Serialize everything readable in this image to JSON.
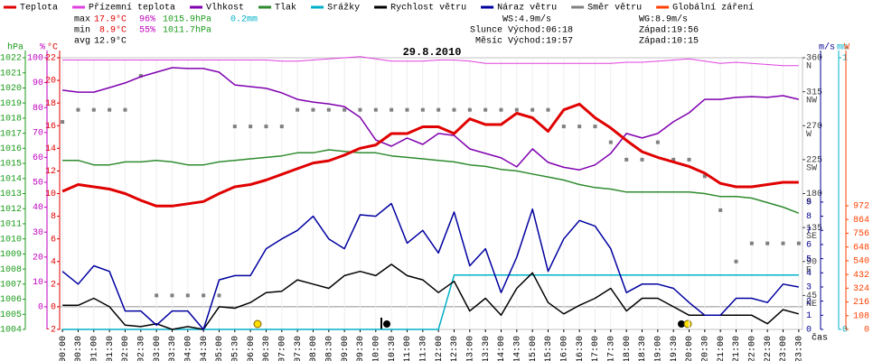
{
  "chart_data": {
    "type": "line",
    "title": "29.8.2010",
    "stats": {
      "max": {
        "label": "max",
        "temp": "17.9°C",
        "hum": "96%",
        "press": "1015.9hPa",
        "rain": "0.2mm"
      },
      "min": {
        "label": "min",
        "temp": "8.9°C",
        "hum": "55%",
        "press": "1011.7hPa"
      },
      "avg": {
        "label": "avg",
        "temp": "12.9°C"
      },
      "wind": {
        "ws": "WS:4.9m/s",
        "wg": "WG:8.9m/s"
      },
      "sun": {
        "rise": "Slunce Východ:06:18",
        "set": "Západ:19:56"
      },
      "moon": {
        "rise": "Měsíc Východ:19:57",
        "set": "Západ:10:15"
      }
    },
    "x_label": "čas",
    "xlim": [
      -0.09,
      23.62
    ],
    "x": [
      0,
      0.5,
      1,
      1.5,
      2,
      2.5,
      3,
      3.5,
      4,
      4.5,
      5,
      5.5,
      6,
      6.5,
      7,
      7.5,
      8,
      8.5,
      9,
      9.5,
      10,
      10.5,
      11,
      11.5,
      12,
      12.5,
      13,
      13.5,
      14,
      14.5,
      15,
      15.5,
      16,
      16.5,
      17,
      17.5,
      18,
      18.5,
      19,
      19.5,
      20,
      20.5,
      21,
      21.5,
      22,
      22.5,
      23,
      23.5
    ],
    "xticks": [
      {
        "value": 0,
        "label": "00:00"
      },
      {
        "value": 0.5,
        "label": "00:30"
      },
      {
        "value": 1,
        "label": "01:00"
      },
      {
        "value": 1.5,
        "label": "01:30"
      },
      {
        "value": 2,
        "label": "02:00"
      },
      {
        "value": 2.5,
        "label": "02:30"
      },
      {
        "value": 3,
        "label": "03:00"
      },
      {
        "value": 3.5,
        "label": "03:30"
      },
      {
        "value": 4,
        "label": "04:00"
      },
      {
        "value": 4.5,
        "label": "04:30"
      },
      {
        "value": 5,
        "label": "05:00"
      },
      {
        "value": 5.5,
        "label": "05:30"
      },
      {
        "value": 6,
        "label": "06:00"
      },
      {
        "value": 6.5,
        "label": "06:30"
      },
      {
        "value": 7,
        "label": "07:00"
      },
      {
        "value": 7.5,
        "label": "07:30"
      },
      {
        "value": 8,
        "label": "08:00"
      },
      {
        "value": 8.5,
        "label": "08:30"
      },
      {
        "value": 9,
        "label": "09:00"
      },
      {
        "value": 9.5,
        "label": "09:30"
      },
      {
        "value": 10,
        "label": "10:00"
      },
      {
        "value": 10.5,
        "label": "10:30"
      },
      {
        "value": 11,
        "label": "11:00"
      },
      {
        "value": 11.5,
        "label": "11:30"
      },
      {
        "value": 12,
        "label": "12:00"
      },
      {
        "value": 12.5,
        "label": "12:30"
      },
      {
        "value": 13,
        "label": "13:00"
      },
      {
        "value": 13.5,
        "label": "13:30"
      },
      {
        "value": 14,
        "label": "14:00"
      },
      {
        "value": 14.5,
        "label": "14:30"
      },
      {
        "value": 15,
        "label": "15:00"
      },
      {
        "value": 15.5,
        "label": "15:30"
      },
      {
        "value": 16,
        "label": "16:00"
      },
      {
        "value": 16.5,
        "label": "16:30"
      },
      {
        "value": 17,
        "label": "17:00"
      },
      {
        "value": 17.5,
        "label": "17:30"
      },
      {
        "value": 18,
        "label": "18:00"
      },
      {
        "value": 18.5,
        "label": "18:30"
      },
      {
        "value": 19,
        "label": "19:00"
      },
      {
        "value": 19.5,
        "label": "19:30"
      },
      {
        "value": 20,
        "label": "20:00"
      },
      {
        "value": 20.5,
        "label": "20:30"
      },
      {
        "value": 21,
        "label": "21:00"
      },
      {
        "value": 21.5,
        "label": "21:30"
      },
      {
        "value": 22,
        "label": "22:00"
      },
      {
        "value": 22.5,
        "label": "22:30"
      },
      {
        "value": 23,
        "label": "23:00"
      },
      {
        "value": 23.5,
        "label": "23:30"
      }
    ],
    "axes": {
      "hPa": {
        "unit": "hPa",
        "color": "#1a9a1a",
        "lim": [
          1004,
          1022
        ],
        "ticks": [
          1004,
          1005,
          1006,
          1007,
          1008,
          1009,
          1010,
          1011,
          1012,
          1013,
          1014,
          1015,
          1016,
          1017,
          1018,
          1019,
          1020,
          1021,
          1022
        ]
      },
      "pct": {
        "unit": "%",
        "color": "#c000c0",
        "lim": [
          -9.06,
          100
        ],
        "ticks": [
          0,
          10,
          20,
          30,
          40,
          50,
          60,
          70,
          80,
          90,
          100
        ]
      },
      "temp": {
        "unit": "°C",
        "color": "#e00000",
        "lim": [
          -2,
          22
        ],
        "ticks": [
          -2,
          0,
          2,
          4,
          6,
          8,
          10,
          12,
          14,
          16,
          18,
          20,
          22
        ]
      },
      "dir": {
        "color": "#404040",
        "lim": [
          0,
          360
        ],
        "ticks": [
          45,
          90,
          135,
          180,
          225,
          270,
          315,
          360
        ],
        "compass": [
          "NE",
          "E",
          "SE",
          "S",
          "SW",
          "W",
          "NW",
          "N"
        ]
      },
      "wind": {
        "unit": "m/s",
        "color": "#000090",
        "lim": [
          0,
          19.2
        ],
        "ticks": [
          0,
          1,
          2,
          3,
          4,
          5,
          6,
          7,
          8,
          9
        ]
      },
      "rain": {
        "unit": "mm",
        "color": "#00b0c8",
        "lim": [
          0,
          1
        ],
        "ticks": [
          0,
          1
        ]
      },
      "rad": {
        "unit": "W",
        "color": "#ff4000",
        "lim": [
          0,
          2136
        ],
        "ticks": [
          0,
          108,
          216,
          324,
          432,
          540,
          648,
          756,
          864,
          972
        ]
      }
    },
    "series": [
      {
        "name": "Teplota",
        "color": "#e00000",
        "axis": "temp",
        "width": 3,
        "values": [
          10.2,
          10.8,
          10.6,
          10.4,
          10,
          9.4,
          8.9,
          8.9,
          9.1,
          9.3,
          10,
          10.6,
          10.8,
          11.2,
          11.7,
          12.2,
          12.7,
          12.9,
          13.4,
          14,
          14.3,
          15.3,
          15.3,
          15.9,
          15.9,
          15.3,
          16.6,
          16.1,
          16.1,
          17.1,
          16.7,
          15.5,
          17.4,
          17.9,
          16.7,
          15.8,
          14.7,
          13.7,
          13.2,
          12.8,
          12.4,
          11.8,
          10.9,
          10.6,
          10.6,
          10.8,
          11,
          11
        ]
      },
      {
        "name": "Přízemní teplota",
        "color": "#e040e0",
        "axis": "temp",
        "width": 1,
        "values": [
          21.8,
          21.8,
          21.8,
          21.8,
          21.8,
          21.8,
          21.8,
          21.8,
          21.8,
          21.8,
          21.8,
          21.8,
          21.8,
          21.8,
          21.7,
          21.7,
          21.8,
          21.9,
          22,
          22.1,
          21.9,
          21.7,
          21.7,
          21.7,
          21.8,
          21.8,
          21.7,
          21.5,
          21.5,
          21.5,
          21.5,
          21.5,
          21.5,
          21.5,
          21.5,
          21.5,
          21.6,
          21.6,
          21.7,
          21.8,
          21.9,
          21.7,
          21.5,
          21.6,
          21.5,
          21.4,
          21.3,
          21.3
        ]
      },
      {
        "name": "Vlhkost",
        "color": "#8000b0",
        "axis": "pct",
        "width": 1.5,
        "values": [
          87,
          86.2,
          86.2,
          88,
          89.9,
          92.4,
          94.2,
          96,
          95.7,
          95.7,
          94.2,
          89.1,
          88.4,
          87.7,
          85.9,
          83.3,
          82.2,
          81.5,
          80.4,
          76.1,
          67,
          64.5,
          67.8,
          65.2,
          69.6,
          68.8,
          63.4,
          61.6,
          59.8,
          56.2,
          63.4,
          58,
          56,
          55,
          57,
          61.6,
          69.6,
          67.8,
          69.6,
          74.3,
          77.9,
          83.3,
          83.3,
          84.1,
          84.4,
          84.1,
          84.8,
          83.3
        ]
      },
      {
        "name": "Tlak",
        "color": "#2e8b2e",
        "axis": "hPa",
        "width": 1.5,
        "values": [
          1015.2,
          1015.2,
          1014.9,
          1014.9,
          1015.1,
          1015.1,
          1015.2,
          1015.1,
          1014.9,
          1014.9,
          1015.1,
          1015.2,
          1015.3,
          1015.4,
          1015.5,
          1015.7,
          1015.7,
          1015.9,
          1015.8,
          1015.7,
          1015.7,
          1015.5,
          1015.4,
          1015.3,
          1015.2,
          1015.1,
          1014.9,
          1014.8,
          1014.6,
          1014.5,
          1014.3,
          1014.1,
          1013.9,
          1013.6,
          1013.4,
          1013.3,
          1013.1,
          1013.1,
          1013.1,
          1013.1,
          1013.1,
          1013,
          1012.8,
          1012.8,
          1012.7,
          1012.4,
          1012.1,
          1011.7
        ]
      },
      {
        "name": "Srážky",
        "color": "#00b0c8",
        "axis": "rain",
        "width": 1.5,
        "values": [
          0,
          0,
          0,
          0,
          0,
          0,
          0,
          0,
          0,
          0,
          0,
          0,
          0,
          0,
          0,
          0,
          0,
          0,
          0,
          0,
          0,
          0,
          0,
          0,
          0,
          0.2,
          0.2,
          0.2,
          0.2,
          0.2,
          0.2,
          0.2,
          0.2,
          0.2,
          0.2,
          0.2,
          0.2,
          0.2,
          0.2,
          0.2,
          0.2,
          0.2,
          0.2,
          0.2,
          0.2,
          0.2,
          0.2,
          0.2
        ]
      },
      {
        "name": "Rychlost větru",
        "color": "#000000",
        "axis": "wind",
        "width": 1.5,
        "values": [
          1.7,
          1.7,
          2.2,
          1.6,
          0.3,
          0.2,
          0.4,
          0,
          0.2,
          0,
          1.6,
          1.5,
          1.9,
          2.6,
          2.7,
          3.5,
          3.2,
          2.9,
          3.8,
          4.1,
          3.8,
          4.6,
          3.8,
          3.5,
          2.6,
          3.4,
          1.3,
          2.2,
          1,
          2.9,
          4,
          1.9,
          1.1,
          1.7,
          2.2,
          2.9,
          1.3,
          2.2,
          2.2,
          1.6,
          1,
          1,
          1,
          1,
          1,
          0.4,
          1.4,
          1.1
        ]
      },
      {
        "name": "Náraz větru",
        "color": "#0000a0",
        "axis": "wind",
        "width": 1.5,
        "values": [
          4.1,
          3.2,
          4.5,
          4.1,
          1.3,
          1.3,
          0.3,
          1.3,
          1.3,
          0,
          3.5,
          3.8,
          3.8,
          5.7,
          6.4,
          7,
          8,
          6.4,
          5.7,
          8.1,
          8,
          8.9,
          6.1,
          7,
          5.4,
          8.3,
          4.5,
          5.7,
          2.6,
          5.1,
          8.5,
          4.1,
          6.4,
          7.7,
          7.3,
          5.7,
          2.6,
          3.2,
          3.2,
          2.9,
          1.9,
          1,
          1,
          2.2,
          2.2,
          1.9,
          3.2,
          3
        ]
      },
      {
        "name": "Směr větru",
        "color": "#808080",
        "axis": "dir",
        "dots": true,
        "values": [
          275,
          291,
          291,
          291,
          291,
          336,
          45,
          45,
          45,
          45,
          45,
          269,
          269,
          269,
          269,
          291,
          291,
          291,
          291,
          291,
          291,
          291,
          291,
          291,
          291,
          291,
          291,
          291,
          291,
          291,
          291,
          291,
          269,
          269,
          269,
          248,
          225,
          225,
          248,
          225,
          225,
          203,
          158,
          90,
          114,
          114,
          114,
          114
        ]
      },
      {
        "name": "Globální záření",
        "color": "#ff4000",
        "axis": "rad"
      }
    ]
  }
}
